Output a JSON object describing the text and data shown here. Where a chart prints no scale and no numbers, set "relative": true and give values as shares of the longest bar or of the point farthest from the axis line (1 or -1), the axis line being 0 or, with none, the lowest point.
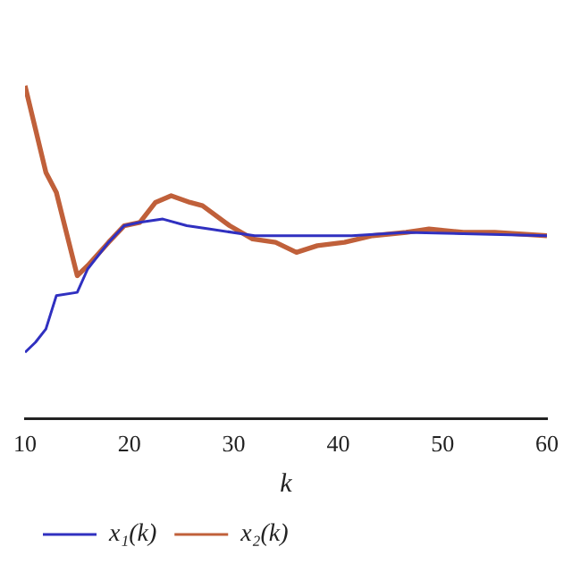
{
  "chart_data": {
    "type": "line",
    "xlabel": "k",
    "relative": true,
    "xlim": [
      10,
      60
    ],
    "xticks": [
      10,
      20,
      30,
      40,
      50,
      60
    ],
    "legend": "bottom left",
    "grid": false,
    "marker": "none",
    "series": [
      {
        "name": "x₁(k)",
        "color": "#3030c0",
        "x": [
          10,
          11,
          12,
          13,
          15,
          16,
          18,
          19.5,
          21,
          23.2,
          25.5,
          27.7,
          32,
          36,
          41.3,
          46.5,
          60
        ],
        "values": [
          0.2,
          0.23,
          0.27,
          0.37,
          0.38,
          0.45,
          0.53,
          0.58,
          0.59,
          0.6,
          0.58,
          0.57,
          0.55,
          0.55,
          0.55,
          0.56,
          0.55
        ]
      },
      {
        "name": "x₂(k)",
        "color": "#c0603a",
        "x": [
          10,
          11,
          12,
          13,
          15,
          16,
          18,
          19.5,
          21,
          22.5,
          24,
          25.8,
          27,
          29.6,
          31.8,
          34,
          36,
          38,
          40.6,
          43.3,
          46.5,
          48.7,
          52,
          55,
          60
        ],
        "values": [
          1,
          0.87,
          0.74,
          0.68,
          0.43,
          0.46,
          0.53,
          0.58,
          0.59,
          0.65,
          0.67,
          0.65,
          0.64,
          0.58,
          0.54,
          0.53,
          0.5,
          0.52,
          0.53,
          0.55,
          0.56,
          0.57,
          0.56,
          0.56,
          0.55
        ]
      }
    ]
  }
}
